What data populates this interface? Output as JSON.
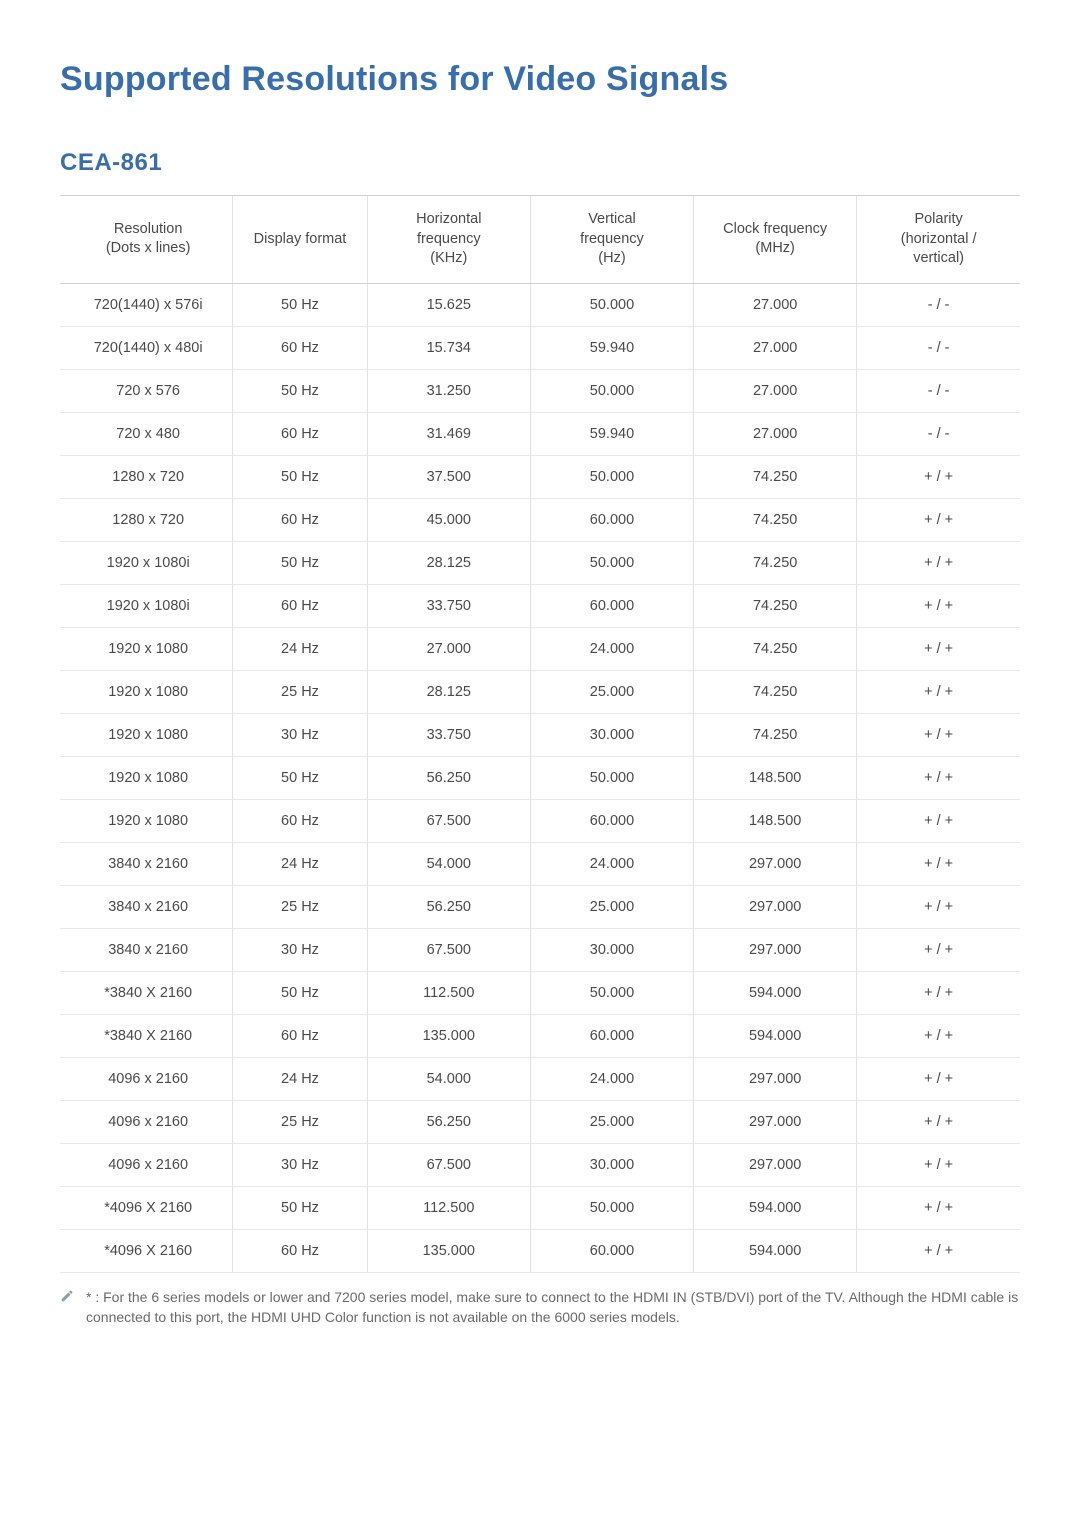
{
  "title": "Supported Resolutions for Video Signals",
  "subtitle": "CEA-861",
  "table": {
    "columns": [
      "Resolution\n(Dots x lines)",
      "Display format",
      "Horizontal\nfrequency\n(KHz)",
      "Vertical\nfrequency\n(Hz)",
      "Clock frequency\n(MHz)",
      "Polarity\n(horizontal /\nvertical)"
    ],
    "column_widths_pct": [
      18,
      14,
      17,
      17,
      17,
      17
    ],
    "header_bg": "#ffffff",
    "row_border_color": "#e8e8e8",
    "col_border_color": "#e2e2e2",
    "rows": [
      [
        "720(1440) x 576i",
        "50 Hz",
        "15.625",
        "50.000",
        "27.000",
        "- / -"
      ],
      [
        "720(1440) x 480i",
        "60 Hz",
        "15.734",
        "59.940",
        "27.000",
        "- / -"
      ],
      [
        "720 x 576",
        "50 Hz",
        "31.250",
        "50.000",
        "27.000",
        "- / -"
      ],
      [
        "720 x 480",
        "60 Hz",
        "31.469",
        "59.940",
        "27.000",
        "- / -"
      ],
      [
        "1280 x 720",
        "50 Hz",
        "37.500",
        "50.000",
        "74.250",
        "+ / +"
      ],
      [
        "1280 x 720",
        "60 Hz",
        "45.000",
        "60.000",
        "74.250",
        "+ / +"
      ],
      [
        "1920 x 1080i",
        "50 Hz",
        "28.125",
        "50.000",
        "74.250",
        "+ / +"
      ],
      [
        "1920 x 1080i",
        "60 Hz",
        "33.750",
        "60.000",
        "74.250",
        "+ / +"
      ],
      [
        "1920 x 1080",
        "24 Hz",
        "27.000",
        "24.000",
        "74.250",
        "+ / +"
      ],
      [
        "1920 x 1080",
        "25 Hz",
        "28.125",
        "25.000",
        "74.250",
        "+ / +"
      ],
      [
        "1920 x 1080",
        "30 Hz",
        "33.750",
        "30.000",
        "74.250",
        "+ / +"
      ],
      [
        "1920 x 1080",
        "50 Hz",
        "56.250",
        "50.000",
        "148.500",
        "+ / +"
      ],
      [
        "1920 x 1080",
        "60 Hz",
        "67.500",
        "60.000",
        "148.500",
        "+ / +"
      ],
      [
        "3840 x 2160",
        "24 Hz",
        "54.000",
        "24.000",
        "297.000",
        "+ / +"
      ],
      [
        "3840 x 2160",
        "25 Hz",
        "56.250",
        "25.000",
        "297.000",
        "+ / +"
      ],
      [
        "3840 x 2160",
        "30 Hz",
        "67.500",
        "30.000",
        "297.000",
        "+ / +"
      ],
      [
        "*3840 X 2160",
        "50 Hz",
        "112.500",
        "50.000",
        "594.000",
        "+ / +"
      ],
      [
        "*3840 X 2160",
        "60 Hz",
        "135.000",
        "60.000",
        "594.000",
        "+ / +"
      ],
      [
        "4096 x 2160",
        "24 Hz",
        "54.000",
        "24.000",
        "297.000",
        "+ / +"
      ],
      [
        "4096 x 2160",
        "25 Hz",
        "56.250",
        "25.000",
        "297.000",
        "+ / +"
      ],
      [
        "4096 x 2160",
        "30 Hz",
        "67.500",
        "30.000",
        "297.000",
        "+ / +"
      ],
      [
        "*4096 X 2160",
        "50 Hz",
        "112.500",
        "50.000",
        "594.000",
        "+ / +"
      ],
      [
        "*4096 X 2160",
        "60 Hz",
        "135.000",
        "60.000",
        "594.000",
        "+ / +"
      ]
    ]
  },
  "footnote": "* : For the 6 series models or lower and 7200 series model, make sure to connect to the HDMI IN (STB/DVI) port of the TV. Although the HDMI cable is connected to this port, the HDMI UHD Color function is not available on the 6000 series models.",
  "colors": {
    "heading": "#3a6ea8",
    "body_text": "#4a4a4a",
    "footnote_text": "#6a6a6a",
    "page_bg": "#ffffff"
  }
}
